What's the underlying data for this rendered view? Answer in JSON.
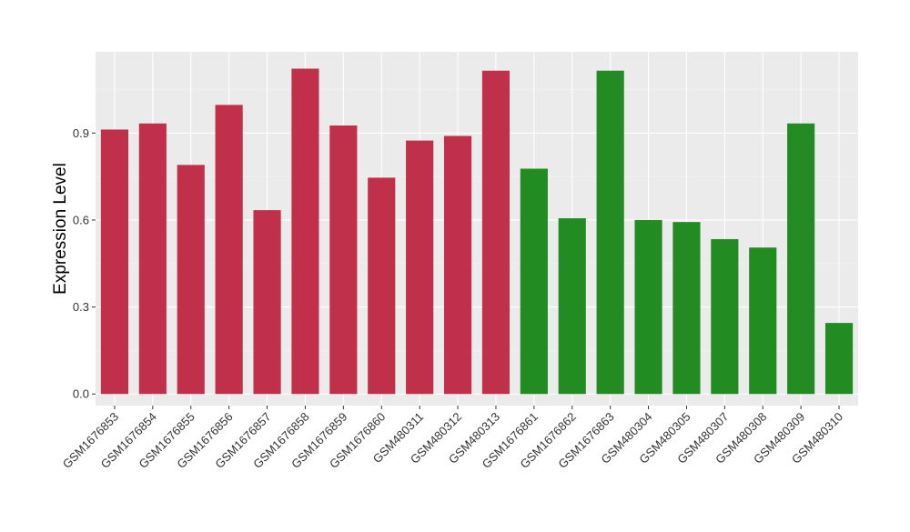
{
  "chart_data": {
    "type": "bar",
    "title": "",
    "xlabel": "",
    "ylabel": "Expression Level",
    "ylim": [
      -0.04,
      1.18
    ],
    "yticks": [
      0.0,
      0.3,
      0.6,
      0.9
    ],
    "ytick_labels": [
      "0.0",
      "0.3",
      "0.6",
      "0.9"
    ],
    "grid": true,
    "legend": "none",
    "background_color": "#EBEBEB",
    "categories": [
      "GSM1676853",
      "GSM1676854",
      "GSM1676855",
      "GSM1676856",
      "GSM1676857",
      "GSM1676858",
      "GSM1676859",
      "GSM1676860",
      "GSM480311",
      "GSM480312",
      "GSM480313",
      "GSM1676861",
      "GSM1676862",
      "GSM1676863",
      "GSM480304",
      "GSM480305",
      "GSM480307",
      "GSM480308",
      "GSM480309",
      "GSM480310"
    ],
    "values": [
      0.912,
      0.933,
      0.79,
      0.997,
      0.634,
      1.122,
      0.926,
      0.746,
      0.874,
      0.89,
      1.115,
      0.777,
      0.606,
      1.115,
      0.6,
      0.593,
      0.534,
      0.505,
      0.933,
      0.245
    ],
    "colors": [
      "#C0304A",
      "#C0304A",
      "#C0304A",
      "#C0304A",
      "#C0304A",
      "#C0304A",
      "#C0304A",
      "#C0304A",
      "#C0304A",
      "#C0304A",
      "#C0304A",
      "#228B22",
      "#228B22",
      "#228B22",
      "#228B22",
      "#228B22",
      "#228B22",
      "#228B22",
      "#228B22",
      "#228B22"
    ]
  }
}
